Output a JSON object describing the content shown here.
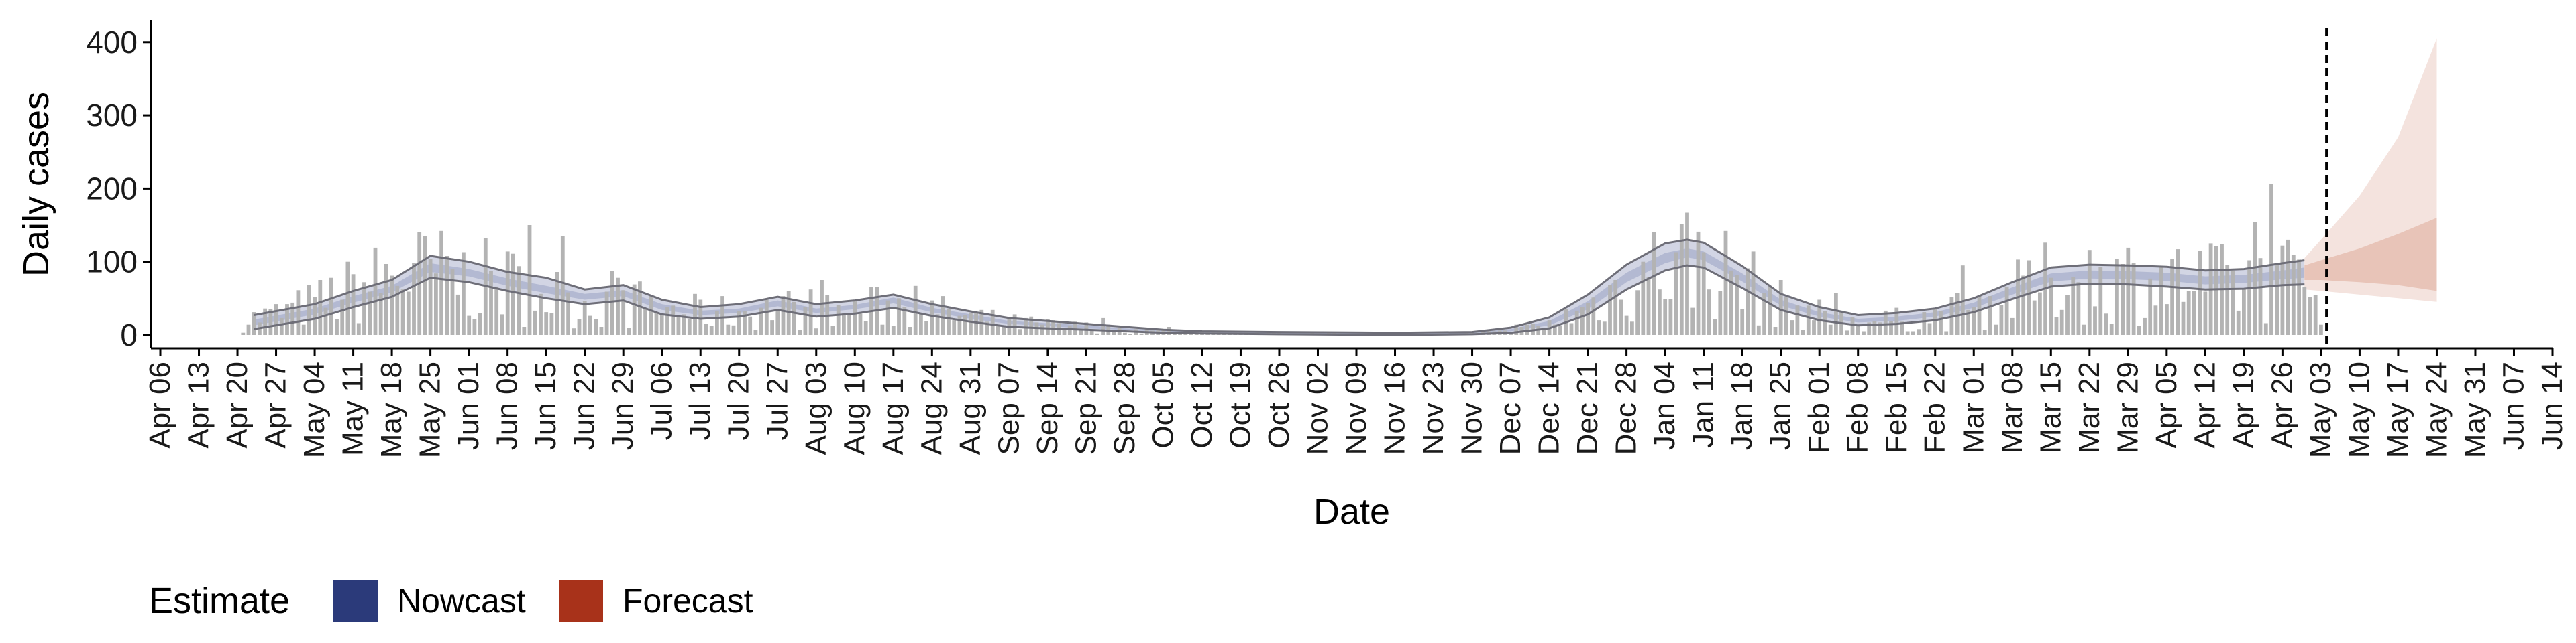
{
  "chart_data": {
    "type": "bar",
    "xlabel": "Date",
    "ylabel": "Daily cases",
    "ylim": [
      0,
      430
    ],
    "yticks": [
      0,
      100,
      200,
      300,
      400
    ],
    "xlim": [
      "2020-04-06",
      "2021-06-14"
    ],
    "xticks": [
      "Apr 06",
      "Apr 13",
      "Apr 20",
      "Apr 27",
      "May 04",
      "May 11",
      "May 18",
      "May 25",
      "Jun 01",
      "Jun 08",
      "Jun 15",
      "Jun 22",
      "Jun 29",
      "Jul 06",
      "Jul 13",
      "Jul 20",
      "Jul 27",
      "Aug 03",
      "Aug 10",
      "Aug 17",
      "Aug 24",
      "Aug 31",
      "Sep 07",
      "Sep 14",
      "Sep 21",
      "Sep 28",
      "Oct 05",
      "Oct 12",
      "Oct 19",
      "Oct 26",
      "Nov 02",
      "Nov 09",
      "Nov 16",
      "Nov 23",
      "Nov 30",
      "Dec 07",
      "Dec 14",
      "Dec 21",
      "Dec 28",
      "Jan 04",
      "Jan 11",
      "Jan 18",
      "Jan 25",
      "Feb 01",
      "Feb 08",
      "Feb 15",
      "Feb 22",
      "Mar 01",
      "Mar 08",
      "Mar 15",
      "Mar 22",
      "Mar 29",
      "Apr 05",
      "Apr 12",
      "Apr 19",
      "Apr 26",
      "May 03",
      "May 10",
      "May 17",
      "May 24",
      "May 31",
      "Jun 07",
      "Jun 14"
    ],
    "forecast_start": "2021-05-04",
    "legend": {
      "title": "Estimate",
      "position": "bottom-left",
      "items": [
        {
          "label": "Nowcast",
          "color": "#2b3a7a"
        },
        {
          "label": "Forecast",
          "color": "#a8321a"
        }
      ]
    },
    "colors": {
      "bars": "#b3b3b3",
      "nowcast_outer": "#d2d5e4",
      "nowcast_inner": "#b3b9d2",
      "nowcast_line": "#6e6e78",
      "forecast_outer": "#f4e3de",
      "forecast_inner": "#e8c4b8",
      "axis": "#000000",
      "vline": "#000000"
    },
    "case_knots": [
      {
        "date": "2020-04-20",
        "value": 20
      },
      {
        "date": "2020-04-27",
        "value": 30
      },
      {
        "date": "2020-05-04",
        "value": 45
      },
      {
        "date": "2020-05-11",
        "value": 65
      },
      {
        "date": "2020-05-18",
        "value": 85
      },
      {
        "date": "2020-05-25",
        "value": 92
      },
      {
        "date": "2020-06-01",
        "value": 80
      },
      {
        "date": "2020-06-08",
        "value": 75
      },
      {
        "date": "2020-06-15",
        "value": 60
      },
      {
        "date": "2020-06-22",
        "value": 45
      },
      {
        "date": "2020-06-29",
        "value": 50
      },
      {
        "date": "2020-07-06",
        "value": 38
      },
      {
        "date": "2020-07-13",
        "value": 32
      },
      {
        "date": "2020-07-20",
        "value": 33
      },
      {
        "date": "2020-07-27",
        "value": 40
      },
      {
        "date": "2020-08-03",
        "value": 33
      },
      {
        "date": "2020-08-10",
        "value": 35
      },
      {
        "date": "2020-08-17",
        "value": 45
      },
      {
        "date": "2020-08-24",
        "value": 35
      },
      {
        "date": "2020-08-31",
        "value": 25
      },
      {
        "date": "2020-09-07",
        "value": 18
      },
      {
        "date": "2020-09-14",
        "value": 14
      },
      {
        "date": "2020-09-21",
        "value": 11
      },
      {
        "date": "2020-09-28",
        "value": 8
      },
      {
        "date": "2020-10-05",
        "value": 5
      },
      {
        "date": "2020-10-12",
        "value": 3
      },
      {
        "date": "2020-10-19",
        "value": 2
      },
      {
        "date": "2020-10-26",
        "value": 2
      },
      {
        "date": "2020-11-02",
        "value": 2
      },
      {
        "date": "2020-11-09",
        "value": 1
      },
      {
        "date": "2020-11-16",
        "value": 1
      },
      {
        "date": "2020-11-23",
        "value": 1
      },
      {
        "date": "2020-11-30",
        "value": 2
      },
      {
        "date": "2020-12-07",
        "value": 5
      },
      {
        "date": "2020-12-14",
        "value": 15
      },
      {
        "date": "2020-12-21",
        "value": 40
      },
      {
        "date": "2020-12-28",
        "value": 75
      },
      {
        "date": "2021-01-04",
        "value": 105
      },
      {
        "date": "2021-01-08",
        "value": 112
      },
      {
        "date": "2021-01-11",
        "value": 108
      },
      {
        "date": "2021-01-18",
        "value": 80
      },
      {
        "date": "2021-01-25",
        "value": 45
      },
      {
        "date": "2021-02-01",
        "value": 30
      },
      {
        "date": "2021-02-08",
        "value": 20
      },
      {
        "date": "2021-02-15",
        "value": 22
      },
      {
        "date": "2021-02-22",
        "value": 28
      },
      {
        "date": "2021-03-01",
        "value": 40
      },
      {
        "date": "2021-03-08",
        "value": 58
      },
      {
        "date": "2021-03-15",
        "value": 78
      },
      {
        "date": "2021-03-22",
        "value": 82
      },
      {
        "date": "2021-03-29",
        "value": 82
      },
      {
        "date": "2021-04-05",
        "value": 80
      },
      {
        "date": "2021-04-12",
        "value": 75
      },
      {
        "date": "2021-04-19",
        "value": 77
      },
      {
        "date": "2021-04-26",
        "value": 82
      },
      {
        "date": "2021-05-03",
        "value": 85
      }
    ],
    "nowcast": [
      {
        "date": "2020-04-23",
        "median": 17,
        "lower90": 8,
        "upper90": 27,
        "lower50": 13,
        "upper50": 21
      },
      {
        "date": "2020-05-04",
        "median": 32,
        "lower90": 22,
        "upper90": 42,
        "lower50": 28,
        "upper50": 36
      },
      {
        "date": "2020-05-11",
        "median": 48,
        "lower90": 38,
        "upper90": 60,
        "lower50": 44,
        "upper50": 53
      },
      {
        "date": "2020-05-18",
        "median": 62,
        "lower90": 52,
        "upper90": 75,
        "lower50": 58,
        "upper50": 67
      },
      {
        "date": "2020-05-25",
        "median": 92,
        "lower90": 78,
        "upper90": 108,
        "lower50": 86,
        "upper50": 98
      },
      {
        "date": "2020-06-01",
        "median": 85,
        "lower90": 72,
        "upper90": 100,
        "lower50": 80,
        "upper50": 90
      },
      {
        "date": "2020-06-08",
        "median": 72,
        "lower90": 60,
        "upper90": 86,
        "lower50": 67,
        "upper50": 77
      },
      {
        "date": "2020-06-15",
        "median": 62,
        "lower90": 50,
        "upper90": 78,
        "lower50": 57,
        "upper50": 67
      },
      {
        "date": "2020-06-22",
        "median": 52,
        "lower90": 42,
        "upper90": 62,
        "lower50": 48,
        "upper50": 56
      },
      {
        "date": "2020-06-29",
        "median": 57,
        "lower90": 47,
        "upper90": 68,
        "lower50": 53,
        "upper50": 61
      },
      {
        "date": "2020-07-06",
        "median": 38,
        "lower90": 28,
        "upper90": 48,
        "lower50": 34,
        "upper50": 42
      },
      {
        "date": "2020-07-13",
        "median": 30,
        "lower90": 22,
        "upper90": 38,
        "lower50": 27,
        "upper50": 33
      },
      {
        "date": "2020-07-20",
        "median": 33,
        "lower90": 25,
        "upper90": 42,
        "lower50": 30,
        "upper50": 36
      },
      {
        "date": "2020-07-27",
        "median": 43,
        "lower90": 34,
        "upper90": 52,
        "lower50": 39,
        "upper50": 47
      },
      {
        "date": "2020-08-03",
        "median": 33,
        "lower90": 25,
        "upper90": 42,
        "lower50": 30,
        "upper50": 36
      },
      {
        "date": "2020-08-10",
        "median": 38,
        "lower90": 29,
        "upper90": 47,
        "lower50": 35,
        "upper50": 41
      },
      {
        "date": "2020-08-17",
        "median": 47,
        "lower90": 37,
        "upper90": 55,
        "lower50": 43,
        "upper50": 51
      },
      {
        "date": "2020-08-24",
        "median": 34,
        "lower90": 26,
        "upper90": 42,
        "lower50": 31,
        "upper50": 37
      },
      {
        "date": "2020-08-31",
        "median": 25,
        "lower90": 18,
        "upper90": 32,
        "lower50": 22,
        "upper50": 28
      },
      {
        "date": "2020-09-07",
        "median": 17,
        "lower90": 11,
        "upper90": 23,
        "lower50": 15,
        "upper50": 19
      },
      {
        "date": "2020-09-14",
        "median": 14,
        "lower90": 9,
        "upper90": 19,
        "lower50": 12,
        "upper50": 16
      },
      {
        "date": "2020-09-21",
        "median": 11,
        "lower90": 7,
        "upper90": 15,
        "lower50": 9,
        "upper50": 13
      },
      {
        "date": "2020-09-28",
        "median": 8,
        "lower90": 5,
        "upper90": 11,
        "lower50": 7,
        "upper50": 9
      },
      {
        "date": "2020-10-05",
        "median": 5,
        "lower90": 3,
        "upper90": 7,
        "lower50": 4,
        "upper50": 6
      },
      {
        "date": "2020-10-12",
        "median": 3,
        "lower90": 2,
        "upper90": 5,
        "lower50": 3,
        "upper50": 4
      },
      {
        "date": "2020-10-26",
        "median": 2,
        "lower90": 1,
        "upper90": 4,
        "lower50": 2,
        "upper50": 3
      },
      {
        "date": "2020-11-16",
        "median": 1,
        "lower90": 0,
        "upper90": 3,
        "lower50": 1,
        "upper50": 2
      },
      {
        "date": "2020-11-30",
        "median": 2,
        "lower90": 1,
        "upper90": 4,
        "lower50": 1,
        "upper50": 3
      },
      {
        "date": "2020-12-07",
        "median": 6,
        "lower90": 3,
        "upper90": 10,
        "lower50": 5,
        "upper50": 8
      },
      {
        "date": "2020-12-14",
        "median": 16,
        "lower90": 9,
        "upper90": 24,
        "lower50": 13,
        "upper50": 19
      },
      {
        "date": "2020-12-21",
        "median": 40,
        "lower90": 28,
        "upper90": 55,
        "lower50": 35,
        "upper50": 46
      },
      {
        "date": "2020-12-28",
        "median": 78,
        "lower90": 62,
        "upper90": 96,
        "lower50": 72,
        "upper50": 85
      },
      {
        "date": "2021-01-04",
        "median": 105,
        "lower90": 88,
        "upper90": 125,
        "lower50": 98,
        "upper50": 112
      },
      {
        "date": "2021-01-08",
        "median": 112,
        "lower90": 95,
        "upper90": 130,
        "lower50": 106,
        "upper50": 118
      },
      {
        "date": "2021-01-11",
        "median": 108,
        "lower90": 92,
        "upper90": 126,
        "lower50": 102,
        "upper50": 114
      },
      {
        "date": "2021-01-18",
        "median": 78,
        "lower90": 64,
        "upper90": 94,
        "lower50": 73,
        "upper50": 84
      },
      {
        "date": "2021-01-25",
        "median": 44,
        "lower90": 34,
        "upper90": 56,
        "lower50": 40,
        "upper50": 48
      },
      {
        "date": "2021-02-01",
        "median": 28,
        "lower90": 20,
        "upper90": 38,
        "lower50": 25,
        "upper50": 31
      },
      {
        "date": "2021-02-08",
        "median": 19,
        "lower90": 13,
        "upper90": 27,
        "lower50": 17,
        "upper50": 22
      },
      {
        "date": "2021-02-15",
        "median": 22,
        "lower90": 15,
        "upper90": 30,
        "lower50": 19,
        "upper50": 25
      },
      {
        "date": "2021-02-22",
        "median": 28,
        "lower90": 20,
        "upper90": 36,
        "lower50": 25,
        "upper50": 31
      },
      {
        "date": "2021-03-01",
        "median": 40,
        "lower90": 31,
        "upper90": 50,
        "lower50": 37,
        "upper50": 44
      },
      {
        "date": "2021-03-08",
        "median": 60,
        "lower90": 49,
        "upper90": 72,
        "lower50": 55,
        "upper50": 65
      },
      {
        "date": "2021-03-15",
        "median": 78,
        "lower90": 66,
        "upper90": 92,
        "lower50": 73,
        "upper50": 84
      },
      {
        "date": "2021-03-22",
        "median": 82,
        "lower90": 70,
        "upper90": 96,
        "lower50": 77,
        "upper50": 88
      },
      {
        "date": "2021-03-29",
        "median": 81,
        "lower90": 69,
        "upper90": 95,
        "lower50": 76,
        "upper50": 87
      },
      {
        "date": "2021-04-05",
        "median": 79,
        "lower90": 66,
        "upper90": 93,
        "lower50": 74,
        "upper50": 85
      },
      {
        "date": "2021-04-12",
        "median": 74,
        "lower90": 62,
        "upper90": 88,
        "lower50": 69,
        "upper50": 80
      },
      {
        "date": "2021-04-19",
        "median": 76,
        "lower90": 63,
        "upper90": 90,
        "lower50": 71,
        "upper50": 82
      },
      {
        "date": "2021-04-26",
        "median": 82,
        "lower90": 68,
        "upper90": 98,
        "lower50": 76,
        "upper50": 88
      },
      {
        "date": "2021-04-30",
        "median": 85,
        "lower90": 69,
        "upper90": 102,
        "lower50": 78,
        "upper50": 92
      }
    ],
    "forecast": [
      {
        "date": "2021-04-30",
        "median": 88,
        "lower90": 62,
        "upper90": 105,
        "lower50": 75,
        "upper50": 95
      },
      {
        "date": "2021-05-03",
        "median": 88,
        "lower90": 60,
        "upper90": 130,
        "lower50": 75,
        "upper50": 102
      },
      {
        "date": "2021-05-10",
        "median": 90,
        "lower90": 55,
        "upper90": 190,
        "lower50": 72,
        "upper50": 118
      },
      {
        "date": "2021-05-17",
        "median": 92,
        "lower90": 50,
        "upper90": 270,
        "lower50": 68,
        "upper50": 138
      },
      {
        "date": "2021-05-24",
        "median": 95,
        "lower90": 45,
        "upper90": 405,
        "lower50": 60,
        "upper50": 160
      }
    ]
  }
}
